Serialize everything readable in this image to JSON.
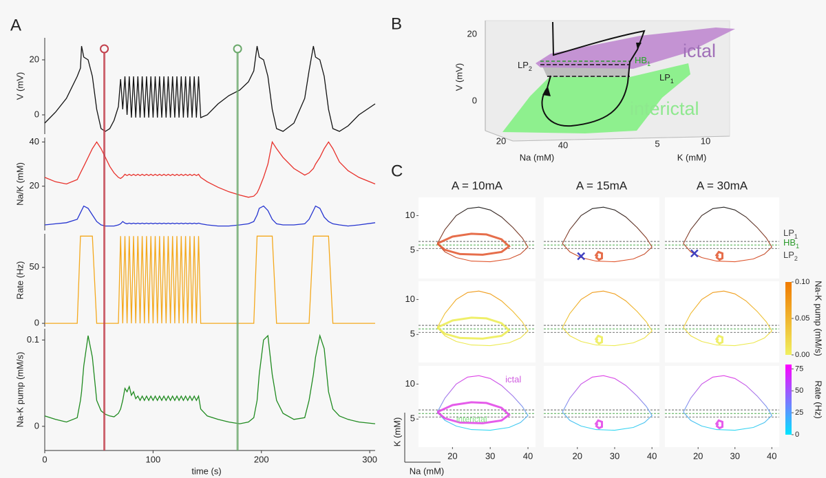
{
  "panel_labels": [
    "A",
    "B",
    "C"
  ],
  "panel_b": {
    "ylabel": "V (mV)",
    "yticks": [
      20,
      0
    ],
    "xlabel": "Na (mM)",
    "xticks": [
      20,
      40
    ],
    "zlabel": "K (mM)",
    "zticks": [
      5,
      10
    ],
    "ictal": "ictal",
    "interictal": "interictal",
    "lp2": {
      "text": "LP",
      "sub": "2"
    },
    "hb1": {
      "text": "HB",
      "sub": "1"
    },
    "lp1": {
      "text": "LP",
      "sub": "1"
    }
  },
  "chart_data": [
    {
      "type": "multi_line",
      "xlabel": "time (s)",
      "xlim": [
        0,
        305
      ],
      "xticks": [
        0,
        100,
        200,
        300
      ],
      "vlines": [
        55,
        178
      ],
      "vline_colors": [
        "#c2404c",
        "#6aa86a"
      ],
      "x": [
        0,
        10,
        20,
        30,
        33,
        34,
        36,
        40,
        44,
        48,
        52,
        56,
        60,
        64,
        68,
        70,
        72,
        74,
        76,
        78,
        80,
        82,
        84,
        86,
        88,
        90,
        92,
        94,
        96,
        98,
        100,
        102,
        104,
        106,
        108,
        110,
        112,
        114,
        116,
        118,
        120,
        122,
        124,
        126,
        128,
        130,
        132,
        134,
        136,
        138,
        140,
        142,
        144,
        150,
        160,
        170,
        180,
        188,
        193,
        196,
        198,
        202,
        206,
        210,
        214,
        220,
        230,
        240,
        244,
        248,
        250,
        254,
        258,
        262,
        266,
        272,
        280,
        290,
        305
      ],
      "panels": [
        {
          "ylabel": "V (mV)",
          "ylim": [
            -7,
            28
          ],
          "yticks": [
            0,
            20
          ],
          "series": [
            {
              "color": "#111111",
              "values": [
                -3,
                1,
                6,
                14,
                17,
                25,
                21,
                20,
                14,
                2,
                -5,
                -6,
                -5,
                -2,
                3,
                13,
                2,
                14,
                0,
                14,
                -1,
                14,
                -1,
                14,
                -1,
                14,
                -1,
                14,
                -1,
                14,
                -1,
                14,
                -1,
                14,
                -1,
                14,
                -1,
                14,
                -1,
                14,
                -1,
                14,
                -1,
                14,
                -1,
                14,
                -1,
                14,
                -1,
                14,
                -1,
                14,
                -1,
                0,
                4,
                7,
                9,
                12,
                16,
                25,
                21,
                20,
                14,
                2,
                -5,
                -6,
                -3,
                6,
                16,
                25,
                21,
                20,
                14,
                2,
                -5,
                -6,
                -4,
                0,
                4
              ]
            }
          ]
        },
        {
          "ylabel": "Na/K (mM)",
          "ylim": [
            0,
            42
          ],
          "yticks": [
            20,
            40
          ],
          "series": [
            {
              "color": "#e8302a",
              "values": [
                24,
                22,
                21,
                23,
                26,
                27,
                29,
                33,
                37,
                40,
                37,
                33,
                29,
                26,
                24,
                23.5,
                24.2,
                25.4,
                24.8,
                25.4,
                24.8,
                25.4,
                24.8,
                25.4,
                24.8,
                25.4,
                24.8,
                25.4,
                24.8,
                25.4,
                24.8,
                25.4,
                24.8,
                25.4,
                24.8,
                25.4,
                24.8,
                25.4,
                24.8,
                25.4,
                24.8,
                25.4,
                24.8,
                25.4,
                24.8,
                25.4,
                24.8,
                25.4,
                24.8,
                25.4,
                24.8,
                25.4,
                24,
                22,
                19.5,
                17.5,
                16,
                15,
                15.5,
                17,
                19,
                24,
                30,
                40,
                37,
                33,
                28,
                25,
                26,
                28,
                30,
                33,
                37,
                40,
                37,
                31,
                27,
                24,
                21
              ]
            },
            {
              "color": "#2433d0",
              "values": [
                2.5,
                3,
                3.5,
                5,
                8,
                9,
                11,
                10,
                7,
                4,
                2.5,
                2,
                2,
                2,
                2.5,
                3,
                4,
                3.3,
                3.0,
                3.3,
                3.0,
                3.3,
                3.0,
                3.3,
                3.0,
                3.3,
                3.0,
                3.3,
                3.0,
                3.3,
                3.0,
                3.3,
                3.0,
                3.3,
                3.0,
                3.3,
                3.0,
                3.3,
                3.0,
                3.3,
                3.0,
                3.3,
                3.0,
                3.3,
                3.0,
                3.3,
                3.0,
                3.3,
                3.0,
                3.3,
                3.0,
                3.3,
                3,
                2.5,
                2,
                2,
                2.5,
                3,
                4,
                7,
                10,
                11,
                9,
                5,
                3,
                2.5,
                2.5,
                3,
                5,
                9,
                11,
                10,
                6,
                4,
                3,
                2.5,
                2,
                2.5,
                3.5
              ]
            }
          ]
        },
        {
          "ylabel": "Rate (Hz)",
          "ylim": [
            -3,
            80
          ],
          "yticks": [
            0,
            50
          ],
          "series": [
            {
              "color": "#f4a81c",
              "values": [
                0,
                0,
                0,
                0,
                78,
                78,
                78,
                78,
                78,
                0,
                0,
                0,
                0,
                0,
                0,
                78,
                0,
                78,
                0,
                78,
                0,
                78,
                0,
                78,
                0,
                78,
                0,
                78,
                0,
                78,
                0,
                78,
                0,
                78,
                0,
                78,
                0,
                78,
                0,
                78,
                0,
                78,
                0,
                78,
                0,
                78,
                0,
                78,
                0,
                78,
                0,
                78,
                0,
                0,
                0,
                0,
                0,
                0,
                0,
                78,
                78,
                78,
                78,
                78,
                0,
                0,
                0,
                0,
                0,
                78,
                78,
                78,
                78,
                78,
                0,
                0,
                0,
                0,
                0
              ]
            }
          ]
        },
        {
          "ylabel": "Na-K pump (mM/s)",
          "ylim": [
            -0.028,
            0.113
          ],
          "yticks": [
            0,
            0.1
          ],
          "series": [
            {
              "color": "#1f8a1f",
              "values": [
                0.012,
                0.008,
                0.005,
                0.01,
                0.03,
                0.04,
                0.07,
                0.105,
                0.08,
                0.03,
                0.018,
                0.014,
                0.012,
                0.011,
                0.015,
                0.02,
                0.03,
                0.044,
                0.04,
                0.046,
                0.036,
                0.04,
                0.032,
                0.035,
                0.03,
                0.035,
                0.03,
                0.035,
                0.03,
                0.035,
                0.03,
                0.035,
                0.03,
                0.035,
                0.03,
                0.035,
                0.03,
                0.035,
                0.03,
                0.035,
                0.03,
                0.035,
                0.03,
                0.035,
                0.03,
                0.035,
                0.03,
                0.035,
                0.03,
                0.035,
                0.03,
                0.035,
                0.02,
                0.012,
                0.008,
                0.005,
                0.003,
                0.005,
                0.01,
                0.03,
                0.06,
                0.1,
                0.105,
                0.06,
                0.03,
                0.015,
                0.008,
                0.01,
                0.03,
                0.06,
                0.08,
                0.105,
                0.09,
                0.04,
                0.02,
                0.012,
                0.008,
                0.005,
                0.003
              ]
            }
          ]
        }
      ]
    },
    {
      "type": "phase_grid",
      "xlabel": "Na (mM)",
      "ylabel": "K (mM)",
      "xlim": [
        11,
        42
      ],
      "ylim": [
        1,
        12.6
      ],
      "xticks": [
        20,
        30,
        40
      ],
      "yticks": [
        5,
        10
      ],
      "x": [
        16,
        18,
        21,
        24,
        27,
        30,
        33,
        36,
        38.5,
        40,
        38,
        35,
        30,
        25,
        21,
        18,
        16
      ],
      "series": [
        {
          "values": [
            6,
            8,
            10,
            11,
            11.2,
            10.8,
            9.8,
            8.3,
            6.8,
            5.5,
            4.5,
            3.8,
            3.4,
            3.5,
            4,
            4.8,
            6
          ]
        }
      ],
      "row_colors": [
        [
          "#222222",
          "#e2552c"
        ],
        [
          "#f09a1a",
          "#ecec50"
        ],
        [
          "#e040e6",
          "#2fd8f2"
        ]
      ],
      "hlines": [
        {
          "text": "LP",
          "sub": "1",
          "value": 6.3,
          "color": "#444444"
        },
        {
          "text": "HB",
          "sub": "1",
          "value": 5.8,
          "color": "#2a9a2a"
        },
        {
          "text": "LP",
          "sub": "2",
          "value": 5.3,
          "color": "#444444"
        }
      ],
      "columns": [
        {
          "title": "A = 10mA",
          "inner_x": [
            16,
            20,
            25,
            29,
            33,
            35,
            33,
            28,
            22,
            18,
            16
          ],
          "inner_y": [
            6,
            7,
            7.4,
            7.3,
            6.6,
            5.6,
            4.8,
            4.4,
            4.5,
            5.1,
            6
          ]
        },
        {
          "title": "A = 15mA",
          "inner_x": [
            24.8,
            25.6,
            26.6,
            26.6,
            25.8,
            25.1,
            25.4
          ],
          "inner_y": [
            4.2,
            4.8,
            4.6,
            3.9,
            3.7,
            4.0,
            4.4
          ],
          "cross": [
            21,
            4.2
          ]
        },
        {
          "title": "A = 30mA",
          "inner_x": [
            24.8,
            25.6,
            26.6,
            26.6,
            25.8,
            25.1,
            25.4
          ],
          "inner_y": [
            4.2,
            4.8,
            4.6,
            3.9,
            3.7,
            4.0,
            4.4
          ],
          "cross": [
            19,
            4.6
          ]
        }
      ],
      "annotations": [
        {
          "text": "ictal",
          "color": "#d05ce0"
        },
        {
          "text": "interictal",
          "color": "#7fe07f"
        }
      ],
      "colorbars": [
        {
          "label": "Na-K pump (mM/s)",
          "lim": [
            0,
            0.1
          ],
          "colors": [
            "#f0f060",
            "#f07a00"
          ],
          "ticks": [
            {
              "value": 0,
              "label": "0.00"
            },
            {
              "value": 0.05,
              "label": "0.05"
            },
            {
              "value": 0.1,
              "label": "0.10"
            }
          ]
        },
        {
          "label": "Rate (Hz)",
          "lim": [
            0,
            80
          ],
          "colors": [
            "#00e5ff",
            "#ff00ff"
          ],
          "ticks": [
            0,
            25,
            50,
            75
          ]
        }
      ]
    }
  ]
}
